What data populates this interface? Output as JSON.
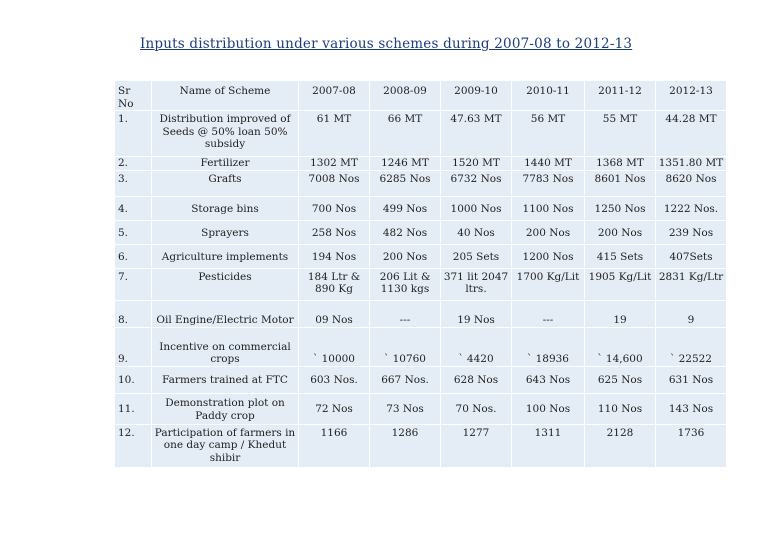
{
  "title": "Inputs distribution under various schemes during 2007-08 to 2012-13",
  "header": {
    "sr": "Sr No",
    "name": "Name of Scheme",
    "years": [
      "2007-08",
      "2008-09",
      "2009-10",
      "2010-11",
      "2011-12",
      "2012-13"
    ]
  },
  "rows": [
    {
      "sr": "1.",
      "name": "Distribution improved of Seeds @ 50% loan 50% subsidy",
      "values": [
        "61 MT",
        "66 MT",
        "47.63 MT",
        "56 MT",
        "55 MT",
        "44.28 MT"
      ]
    },
    {
      "sr": "2.",
      "name": "Fertilizer",
      "values": [
        "1302 MT",
        "1246 MT",
        "1520 MT",
        "1440 MT",
        "1368 MT",
        "1351.80 MT"
      ]
    },
    {
      "sr": "3.",
      "name": "Grafts",
      "values": [
        "7008 Nos",
        "6285 Nos",
        "6732 Nos",
        "7783 Nos",
        "8601 Nos",
        "8620 Nos"
      ]
    },
    {
      "sr": "4.",
      "name": "Storage bins",
      "values": [
        "700 Nos",
        "499 Nos",
        "1000 Nos",
        "1100 Nos",
        "1250 Nos",
        "1222 Nos."
      ]
    },
    {
      "sr": "5.",
      "name": "Sprayers",
      "values": [
        "258 Nos",
        "482 Nos",
        "40 Nos",
        "200 Nos",
        "200 Nos",
        "239 Nos"
      ]
    },
    {
      "sr": "6.",
      "name": "Agriculture implements",
      "values": [
        "194 Nos",
        "200 Nos",
        "205 Sets",
        "1200 Nos",
        "415 Sets",
        "407Sets"
      ]
    },
    {
      "sr": "7.",
      "name": "Pesticides",
      "values": [
        "184 Ltr & 890 Kg",
        "206 Lit & 1130 kgs",
        "371 lit 2047 ltrs.",
        "1700 Kg/Lit",
        "1905 Kg/Lit",
        "2831 Kg/Ltr"
      ]
    },
    {
      "sr": "8.",
      "name": "Oil Engine/Electric Motor",
      "values": [
        "09 Nos",
        "---",
        "19 Nos",
        "---",
        "19",
        "9"
      ]
    },
    {
      "sr": "9.",
      "name": "Incentive on commercial crops",
      "values": [
        "` 10000",
        "` 10760",
        "` 4420",
        "` 18936",
        "` 14,600",
        "` 22522"
      ]
    },
    {
      "sr": "10.",
      "name": "Farmers trained at FTC",
      "values": [
        "603 Nos.",
        "667 Nos.",
        "628 Nos",
        "643 Nos",
        "625 Nos",
        "631 Nos"
      ]
    },
    {
      "sr": "11.",
      "name": "Demonstration plot on Paddy crop",
      "values": [
        "72 Nos",
        "73 Nos",
        "70 Nos.",
        "100 Nos",
        "110 Nos",
        "143 Nos"
      ]
    },
    {
      "sr": "12.",
      "name": "Participation of farmers in one day camp / Khedut shibir",
      "values": [
        "1166",
        "1286",
        "1277",
        "1311",
        "2128",
        "1736"
      ]
    }
  ]
}
